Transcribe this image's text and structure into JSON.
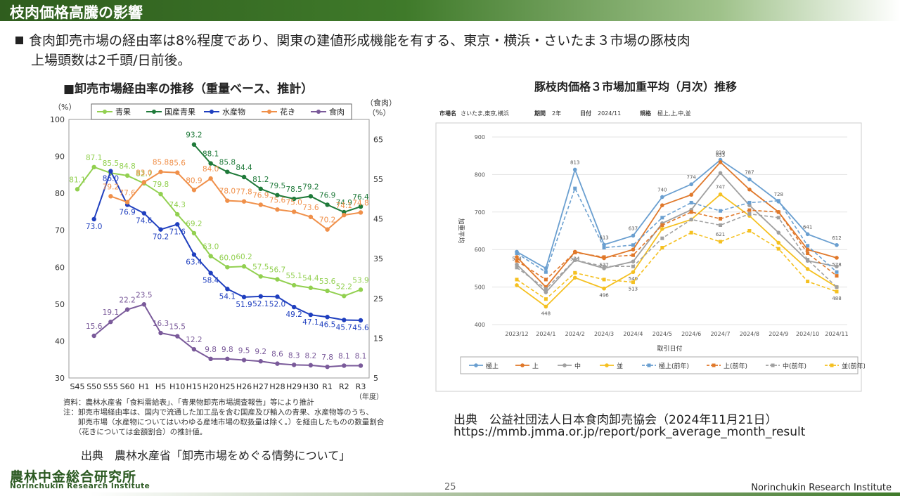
{
  "header": {
    "title": "枝肉価格高騰の影響"
  },
  "bullet": {
    "line1": "食肉卸売市場の経由率は8%程度であり、関東の建値形成機能を有する、東京・横浜・さいたま３市場の豚枝肉",
    "line2": "上場頭数は2千頭/日前後。"
  },
  "chart_data": [
    {
      "type": "line",
      "title": "■卸売市場経由率の推移（重量ベース、推計）",
      "ylabel_left": "（%）",
      "ylabel_right": "（食肉）",
      "ylabel_right2": "（%）",
      "xlabel": "（年度）",
      "ylim_left": [
        30,
        100
      ],
      "ylim_right": [
        5,
        70
      ],
      "yticks_left": [
        30,
        40,
        50,
        60,
        70,
        80,
        90,
        100
      ],
      "yticks_right": [
        5,
        15,
        25,
        35,
        45,
        55,
        65
      ],
      "categories": [
        "S45",
        "S50",
        "S55",
        "S60",
        "H1",
        "H5",
        "H10",
        "H15",
        "H20",
        "H25",
        "H26",
        "H27",
        "H28",
        "H29",
        "H30",
        "R1",
        "R2",
        "R3"
      ],
      "legend_position": "top",
      "series": [
        {
          "name": "青果",
          "color": "#92d050",
          "axis": "left",
          "values": [
            81.1,
            87.1,
            85.5,
            84.8,
            82.7,
            79.8,
            74.3,
            69.2,
            63.0,
            60.0,
            60.2,
            57.5,
            56.7,
            55.1,
            54.4,
            53.6,
            52.2,
            53.9
          ],
          "labels": [
            "81.1",
            "87.1",
            "85.5",
            "84.8",
            "82.7",
            "79.8",
            "74.3",
            "69.2",
            "63.0",
            "60.0",
            "60.2",
            "57.5",
            "56.7",
            "55.1",
            "54.4",
            "53.6",
            "52.2",
            "53.9"
          ]
        },
        {
          "name": "国産青果",
          "color": "#1f7a3a",
          "axis": "left",
          "values": [
            null,
            null,
            null,
            null,
            null,
            null,
            null,
            93.2,
            88.1,
            85.8,
            84.4,
            81.2,
            79.5,
            78.5,
            79.2,
            76.9,
            74.9,
            76.4
          ],
          "labels": [
            "",
            "",
            "",
            "",
            "",
            "",
            "",
            "93.2",
            "88.1",
            "85.8",
            "84.4",
            "81.2",
            "79.5",
            "78.5",
            "79.2",
            "76.9",
            "74.9",
            "76.4"
          ]
        },
        {
          "name": "水産物",
          "color": "#1f3fbf",
          "axis": "left",
          "values": [
            null,
            73.0,
            86.0,
            76.9,
            74.6,
            70.2,
            71.6,
            63.4,
            58.4,
            54.1,
            51.9,
            52.1,
            52.0,
            49.2,
            47.1,
            46.5,
            45.7,
            45.6
          ],
          "labels": [
            "",
            "73.0",
            "86.0",
            "76.9",
            "74.6",
            "70.2",
            "71.6",
            "63.4",
            "58.4",
            "54.1",
            "51.9",
            "52.1",
            "52.0",
            "49.2",
            "47.1",
            "46.5",
            "45.7",
            "45.6"
          ]
        },
        {
          "name": "花き",
          "color": "#f0904a",
          "axis": "left",
          "values": [
            null,
            null,
            79.2,
            77.6,
            83.0,
            85.8,
            85.6,
            80.9,
            84.0,
            78.0,
            77.8,
            76.9,
            75.6,
            75.0,
            73.6,
            70.2,
            74.1,
            74.8
          ],
          "labels": [
            "",
            "",
            "79.2",
            "77.6",
            "83.0",
            "85.8",
            "85.6",
            "80.9",
            "84.0",
            "78.0",
            "77.8",
            "76.9",
            "75.6",
            "75.0",
            "73.6",
            "70.2",
            "74.1",
            "74.8"
          ]
        },
        {
          "name": "食肉",
          "color": "#7a5a9a",
          "axis": "right",
          "values": [
            null,
            15.6,
            19.1,
            22.2,
            23.5,
            16.3,
            15.5,
            12.2,
            9.8,
            9.8,
            9.5,
            9.2,
            8.6,
            8.3,
            8.2,
            7.8,
            8.1,
            8.1
          ],
          "labels": [
            "",
            "15.6",
            "19.1",
            "22.2",
            "23.5",
            "16.3",
            "15.5",
            "12.2",
            "9.8",
            "9.8",
            "9.5",
            "9.2",
            "8.6",
            "8.3",
            "8.2",
            "7.8",
            "8.1",
            "8.1"
          ]
        }
      ]
    },
    {
      "type": "line",
      "title": "豚枝肉価格３市場加重平均（月次）推移",
      "filter_labels": [
        "市場名",
        "さいたま,東京,横浜",
        "期間",
        "2年",
        "日付",
        "2024/11",
        "規格",
        "極上,上,中,並"
      ],
      "ylabel": "加重平均",
      "xlabel": "取引日付",
      "ylim": [
        400,
        900
      ],
      "yticks": [
        400,
        500,
        600,
        700,
        800,
        900
      ],
      "categories": [
        "2023/12",
        "2024/1",
        "2024/2",
        "2024/3",
        "2024/4",
        "2024/5",
        "2024/6",
        "2024/7",
        "2024/8",
        "2024/9",
        "2024/10",
        "2024/11"
      ],
      "legend_position": "bottom",
      "series": [
        {
          "name": "極上",
          "color": "#6a9fd0",
          "dashed": false,
          "values": [
            594,
            550,
            813,
            613,
            637,
            740,
            774,
            839,
            787,
            728,
            641,
            612
          ],
          "labels": [
            "594",
            "",
            "813",
            "613",
            "637",
            "740",
            "774",
            "839",
            "787",
            "728",
            "641",
            "612"
          ]
        },
        {
          "name": "上",
          "color": "#e0782a",
          "dashed": false,
          "values": [
            580,
            500,
            594,
            577,
            600,
            718,
            746,
            833,
            760,
            700,
            600,
            578
          ],
          "labels": [
            "",
            "",
            "594",
            "577",
            "",
            "",
            "",
            "833",
            "",
            "",
            "",
            "578"
          ]
        },
        {
          "name": "中",
          "color": "#a0a0a0",
          "dashed": false,
          "values": [
            560,
            486,
            572,
            550,
            568,
            670,
            706,
            804,
            718,
            645,
            570,
            555
          ],
          "labels": []
        },
        {
          "name": "並",
          "color": "#f5c020",
          "dashed": false,
          "values": [
            505,
            448,
            525,
            496,
            540,
            655,
            680,
            747,
            690,
            618,
            548,
            500
          ],
          "labels": [
            "",
            "448",
            "",
            "496",
            "540",
            "",
            "",
            "747",
            "",
            "",
            "",
            ""
          ]
        },
        {
          "name": "極上(前年)",
          "color": "#6a9fd0",
          "dashed": true,
          "values": [
            590,
            540,
            763,
            605,
            612,
            685,
            725,
            703,
            725,
            730,
            610,
            540
          ],
          "labels": []
        },
        {
          "name": "上(前年)",
          "color": "#e0782a",
          "dashed": true,
          "values": [
            570,
            520,
            592,
            580,
            585,
            665,
            700,
            682,
            705,
            700,
            590,
            530
          ],
          "labels": []
        },
        {
          "name": "中(前年)",
          "color": "#a0a0a0",
          "dashed": true,
          "values": [
            552,
            495,
            572,
            555,
            555,
            630,
            680,
            665,
            695,
            685,
            573,
            500
          ],
          "labels": []
        },
        {
          "name": "並(前年)",
          "color": "#f5c020",
          "dashed": true,
          "values": [
            520,
            468,
            538,
            520,
            513,
            605,
            645,
            621,
            650,
            602,
            515,
            488
          ],
          "labels": [
            "",
            "",
            "",
            "",
            "513",
            "",
            "",
            "621",
            "",
            "",
            "",
            "488"
          ]
        }
      ]
    }
  ],
  "notes": [
    "資料：農林水産省「食料需給表」、「青果物卸売市場調査報告」等により推計",
    "注：卸売市場経由率は、国内で流通した加工品を含む国産及び輸入の青果、水産物等のうち、",
    "　　卸売市場（水産物についてはいわゆる産地市場の取扱量は除く。）を経由したものの数量割合",
    "　　（花きについては金額割合）の推計値。"
  ],
  "source_left": "出典　農林水産省「卸売市場をめぐる情勢について」",
  "source_right_1": "出典　公益社団法人日本食肉卸売協会（2024年11月21日）",
  "source_right_2": "https://mmb.jmma.or.jp/report/pork_average_month_result",
  "footer": {
    "logo_jp": "農林中金総合研究所",
    "logo_en": "Norinchukin Research Institute",
    "page": "25",
    "org": "Norinchukin Research Institute"
  }
}
